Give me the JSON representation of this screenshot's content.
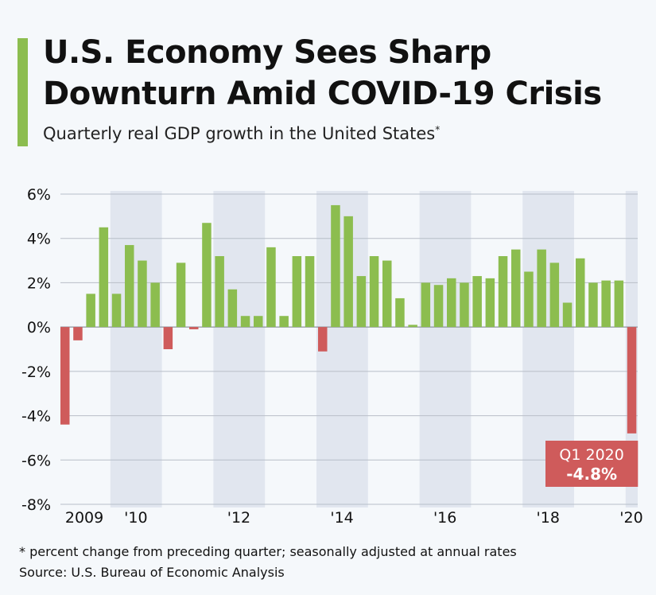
{
  "header": {
    "title": "U.S. Economy Sees Sharp Downturn Amid COVID-19 Crisis",
    "subtitle": "Quarterly real GDP growth in the United States",
    "subtitle_marker": "*"
  },
  "footer": {
    "footnote": "* percent change from preceding quarter; seasonally adjusted at annual rates",
    "source": "Source: U.S. Bureau of Economic Analysis"
  },
  "colors": {
    "positive": "#8cbd4f",
    "negative": "#cf5b5b",
    "band": "#e1e6ef",
    "grid": "#b8bec8",
    "accent": "#8cbd4f"
  },
  "chart_data": {
    "type": "bar",
    "x_tick_labels": [
      "2009",
      "'10",
      "'12",
      "'14",
      "'16",
      "'18",
      "'20"
    ],
    "x_tick_quarter_index": [
      1.5,
      5.5,
      13.5,
      21.5,
      29.5,
      37.5,
      43
    ],
    "y_ticks": [
      "6%",
      "4%",
      "2%",
      "0%",
      "-2%",
      "-4%",
      "-6%",
      "-8%"
    ],
    "y_tick_values": [
      6,
      4,
      2,
      0,
      -2,
      -4,
      -6,
      -8
    ],
    "ylim": [
      -8,
      6
    ],
    "shaded_year_bands": [
      "2010",
      "2012",
      "2014",
      "2016",
      "2018",
      "2020"
    ],
    "categories": [
      "Q1 2009",
      "Q2 2009",
      "Q3 2009",
      "Q4 2009",
      "Q1 2010",
      "Q2 2010",
      "Q3 2010",
      "Q4 2010",
      "Q1 2011",
      "Q2 2011",
      "Q3 2011",
      "Q4 2011",
      "Q1 2012",
      "Q2 2012",
      "Q3 2012",
      "Q4 2012",
      "Q1 2013",
      "Q2 2013",
      "Q3 2013",
      "Q4 2013",
      "Q1 2014",
      "Q2 2014",
      "Q3 2014",
      "Q4 2014",
      "Q1 2015",
      "Q2 2015",
      "Q3 2015",
      "Q4 2015",
      "Q1 2016",
      "Q2 2016",
      "Q3 2016",
      "Q4 2016",
      "Q1 2017",
      "Q2 2017",
      "Q3 2017",
      "Q4 2017",
      "Q1 2018",
      "Q2 2018",
      "Q3 2018",
      "Q4 2018",
      "Q1 2019",
      "Q2 2019",
      "Q3 2019",
      "Q4 2019",
      "Q1 2020"
    ],
    "values": [
      -4.4,
      -0.6,
      1.5,
      4.5,
      1.5,
      3.7,
      3.0,
      2.0,
      -1.0,
      2.9,
      -0.1,
      4.7,
      3.2,
      1.7,
      0.5,
      0.5,
      3.6,
      0.5,
      3.2,
      3.2,
      -1.1,
      5.5,
      5.0,
      2.3,
      3.2,
      3.0,
      1.3,
      0.1,
      2.0,
      1.9,
      2.2,
      2.0,
      2.3,
      2.2,
      3.2,
      3.5,
      2.5,
      3.5,
      2.9,
      1.1,
      3.1,
      2.0,
      2.1,
      2.1,
      -4.8
    ],
    "annotation": {
      "label": "Q1 2020",
      "value_text": "-4.8%"
    },
    "grid": true,
    "legend": "none"
  }
}
